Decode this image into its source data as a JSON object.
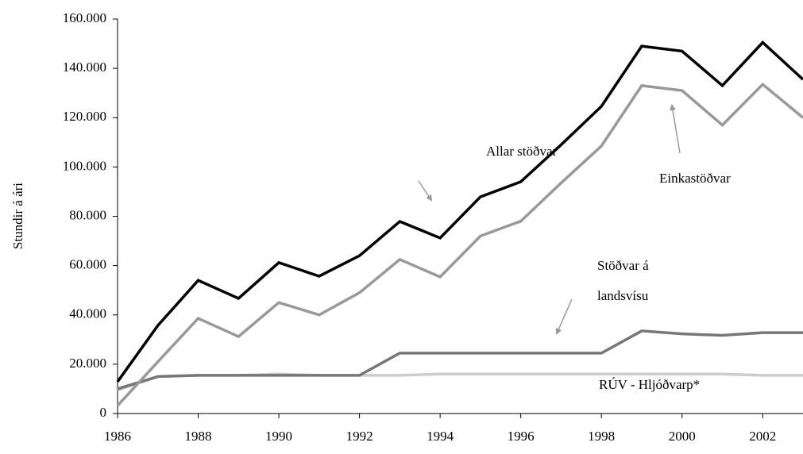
{
  "chart_data": {
    "type": "line",
    "y_label": "Stundir á ári",
    "x": [
      1986,
      1987,
      1988,
      1989,
      1990,
      1991,
      1992,
      1993,
      1994,
      1995,
      1996,
      1997,
      1998,
      1999,
      2000,
      2001,
      2002,
      2003
    ],
    "series": [
      {
        "name": "Allar stöðvar",
        "color": "#000000",
        "values": [
          12900,
          35700,
          54000,
          46700,
          61200,
          55700,
          64000,
          77900,
          71200,
          87900,
          94000,
          109000,
          124600,
          149000,
          147000,
          133000,
          150500,
          135500
        ]
      },
      {
        "name": "Einkastöðvar",
        "color": "#999999",
        "values": [
          3200,
          21000,
          38600,
          31200,
          45000,
          40000,
          49000,
          62500,
          55400,
          72000,
          78000,
          93500,
          108500,
          133000,
          131000,
          117000,
          133500,
          120000
        ]
      },
      {
        "name": "Stöðvar á landsvísu",
        "color": "#777777",
        "values": [
          10000,
          15000,
          15500,
          15500,
          15500,
          15500,
          15500,
          24500,
          24500,
          24500,
          24500,
          24500,
          24500,
          33500,
          32300,
          31700,
          32800,
          32800
        ]
      },
      {
        "name": "RÚV - Hljóðvarp*",
        "color": "#cccccc",
        "values": [
          9500,
          15000,
          15500,
          15500,
          16000,
          15500,
          15500,
          15500,
          16000,
          16000,
          16000,
          16000,
          16000,
          16000,
          16000,
          16000,
          15500,
          15500
        ]
      }
    ],
    "xlim": [
      1986,
      2003
    ],
    "xticks": [
      1986,
      1988,
      1990,
      1992,
      1994,
      1996,
      1998,
      2000,
      2002
    ],
    "ylim": [
      0,
      160000
    ],
    "yticks": [
      0,
      {
        "value": 20000,
        "label": "20.000"
      },
      {
        "value": 40000,
        "label": "40.000"
      },
      {
        "value": 60000,
        "label": "60.000"
      },
      {
        "value": 80000,
        "label": "80.000"
      },
      {
        "value": 100000,
        "label": "100.000"
      },
      {
        "value": 120000,
        "label": "120.000"
      },
      {
        "value": 140000,
        "label": "140.000"
      },
      {
        "value": 160000,
        "label": "160.000"
      }
    ]
  }
}
